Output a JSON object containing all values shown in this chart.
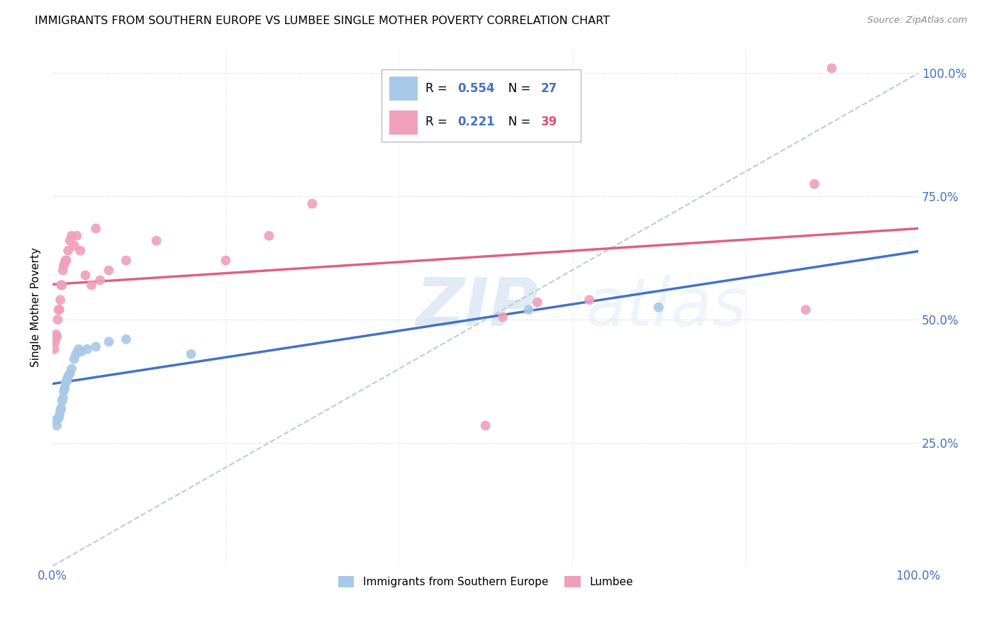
{
  "title": "IMMIGRANTS FROM SOUTHERN EUROPE VS LUMBEE SINGLE MOTHER POVERTY CORRELATION CHART",
  "source": "Source: ZipAtlas.com",
  "ylabel": "Single Mother Poverty",
  "legend_label1": "Immigrants from Southern Europe",
  "legend_label2": "Lumbee",
  "R1": "0.554",
  "N1": "27",
  "R2": "0.221",
  "N2": "39",
  "color_blue": "#A8C8E8",
  "color_pink": "#F0A0B8",
  "color_blue_text": "#4472C4",
  "color_pink_text": "#E05070",
  "color_trendline_blue": "#4472C4",
  "color_trendline_pink": "#E06080",
  "color_diagonal": "#BBCCDD",
  "blue_points_x": [
    0.003,
    0.005,
    0.007,
    0.008,
    0.009,
    0.01,
    0.011,
    0.012,
    0.013,
    0.014,
    0.015,
    0.016,
    0.017,
    0.018,
    0.02,
    0.022,
    0.025,
    0.027,
    0.03,
    0.033,
    0.04,
    0.05,
    0.065,
    0.085,
    0.16,
    0.55,
    0.7
  ],
  "blue_points_y": [
    0.295,
    0.285,
    0.3,
    0.305,
    0.315,
    0.32,
    0.335,
    0.34,
    0.355,
    0.36,
    0.37,
    0.375,
    0.38,
    0.385,
    0.39,
    0.4,
    0.42,
    0.43,
    0.44,
    0.435,
    0.44,
    0.445,
    0.455,
    0.46,
    0.43,
    0.52,
    0.525
  ],
  "pink_points_x": [
    0.001,
    0.002,
    0.003,
    0.004,
    0.005,
    0.006,
    0.007,
    0.008,
    0.009,
    0.01,
    0.011,
    0.012,
    0.013,
    0.014,
    0.015,
    0.016,
    0.018,
    0.02,
    0.022,
    0.025,
    0.028,
    0.032,
    0.038,
    0.045,
    0.055,
    0.065,
    0.085,
    0.12,
    0.2,
    0.25,
    0.3,
    0.5,
    0.52,
    0.56,
    0.62,
    0.87,
    0.88,
    0.9,
    0.05
  ],
  "pink_points_y": [
    0.46,
    0.44,
    0.455,
    0.47,
    0.465,
    0.5,
    0.52,
    0.52,
    0.54,
    0.57,
    0.57,
    0.6,
    0.61,
    0.615,
    0.62,
    0.62,
    0.64,
    0.66,
    0.67,
    0.65,
    0.67,
    0.64,
    0.59,
    0.57,
    0.58,
    0.6,
    0.62,
    0.66,
    0.62,
    0.67,
    0.735,
    0.285,
    0.505,
    0.535,
    0.54,
    0.52,
    0.775,
    1.01,
    0.685
  ],
  "xlim": [
    0.0,
    1.0
  ],
  "ylim": [
    0.0,
    1.05
  ],
  "y_ticks": [
    0.0,
    0.25,
    0.5,
    0.75,
    1.0
  ],
  "y_tick_labels_right": [
    "",
    "25.0%",
    "50.0%",
    "75.0%",
    "100.0%"
  ],
  "x_ticks": [
    0.0,
    0.2,
    0.4,
    0.6,
    0.8,
    1.0
  ],
  "x_tick_labels": [
    "0.0%",
    "",
    "",
    "",
    "",
    "100.0%"
  ]
}
